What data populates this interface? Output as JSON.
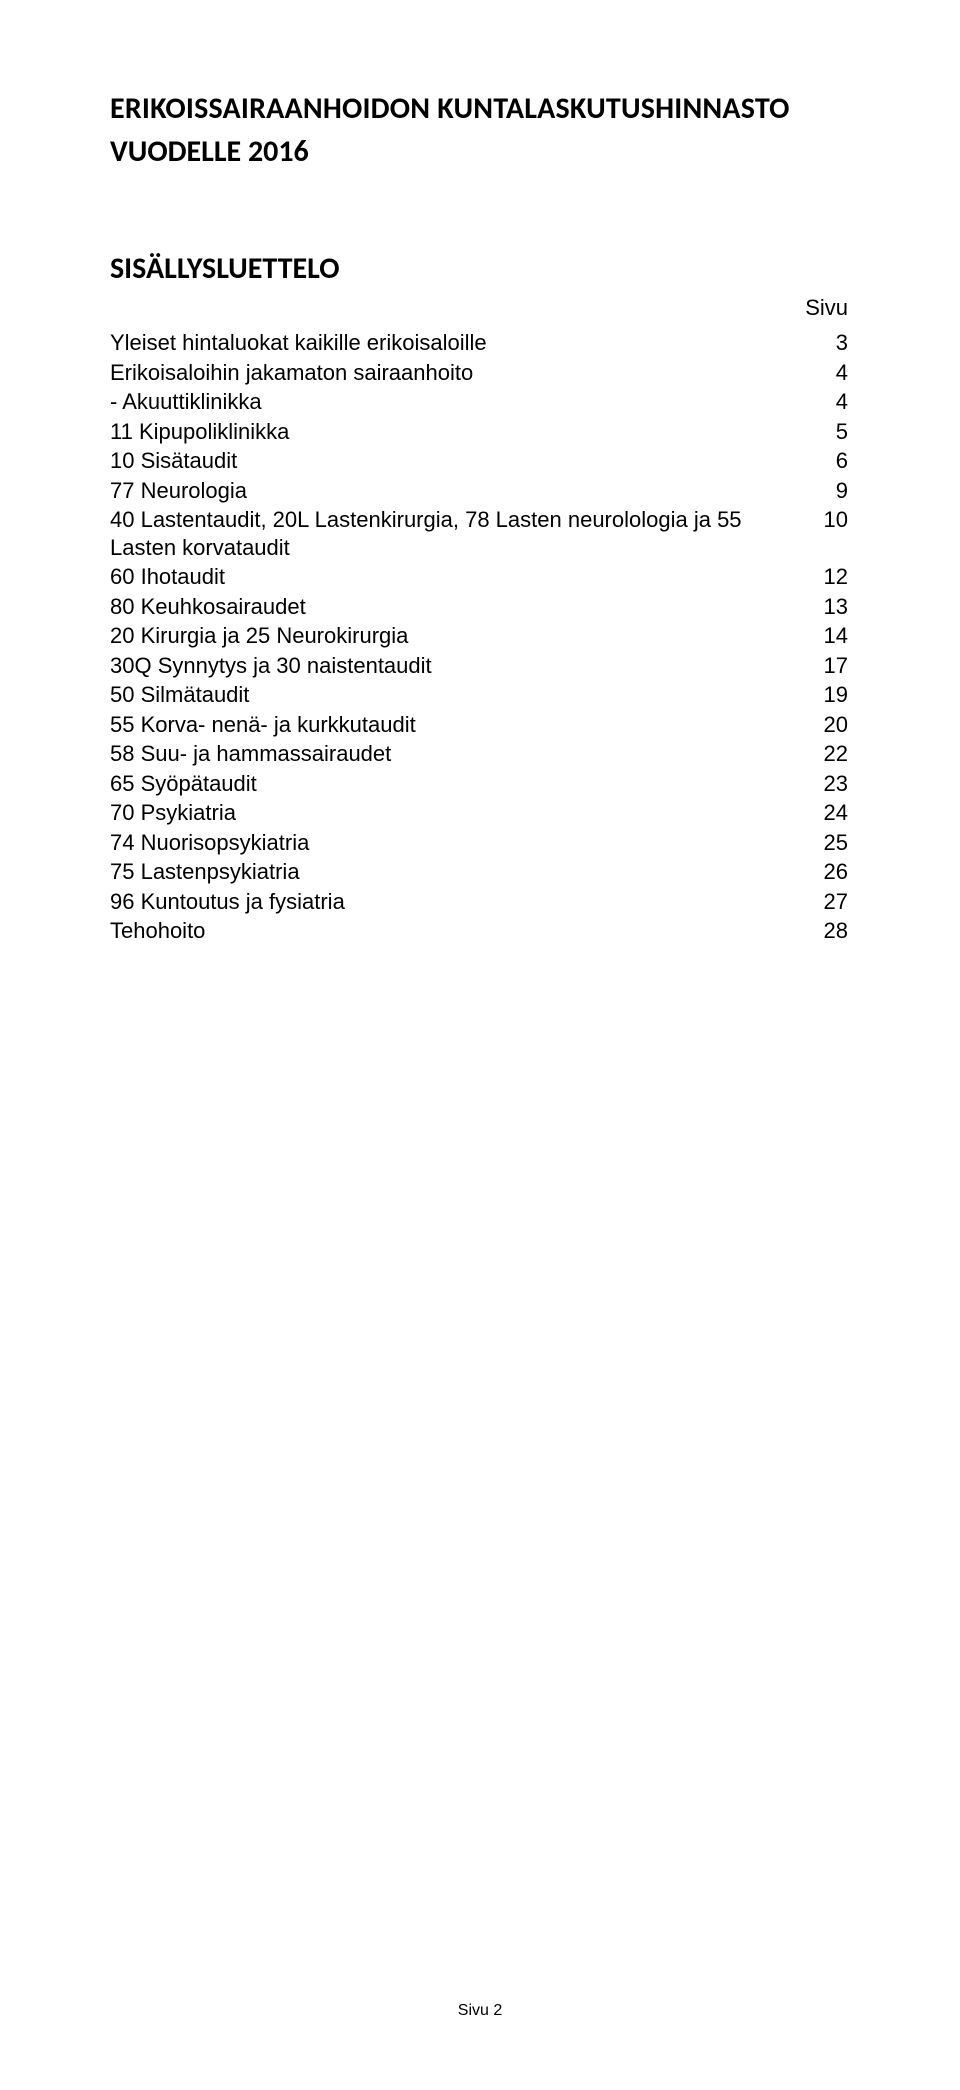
{
  "title": "ERIKOISSAIRAANHOIDON KUNTALASKUTUSHINNASTO",
  "subtitle": "VUODELLE 2016",
  "section_heading": "SISÄLLYSLUETTELO",
  "page_col_label": "Sivu",
  "toc": [
    {
      "label": "Yleiset hintaluokat kaikille erikoisaloille",
      "page": "3"
    },
    {
      "label": "Erikoisaloihin jakamaton sairaanhoito",
      "page": "4"
    },
    {
      "label": " - Akuuttiklinikka",
      "page": "4"
    },
    {
      "label": "11 Kipupoliklinikka",
      "page": "5"
    },
    {
      "label": "10 Sisätaudit",
      "page": "6"
    },
    {
      "label": "77 Neurologia",
      "page": "9"
    },
    {
      "label": "40 Lastentaudit, 20L Lastenkirurgia, 78 Lasten neurolologia ja  55 Lasten korvataudit",
      "page": "10"
    },
    {
      "label": "60 Ihotaudit",
      "page": "12"
    },
    {
      "label": "80 Keuhkosairaudet",
      "page": "13"
    },
    {
      "label": "20 Kirurgia ja 25 Neurokirurgia",
      "page": "14"
    },
    {
      "label": "30Q Synnytys ja 30 naistentaudit",
      "page": "17"
    },
    {
      "label": "50 Silmätaudit",
      "page": "19"
    },
    {
      "label": "55 Korva- nenä- ja kurkkutaudit",
      "page": "20"
    },
    {
      "label": "58 Suu- ja hammassairaudet",
      "page": "22"
    },
    {
      "label": "65 Syöpätaudit",
      "page": "23"
    },
    {
      "label": "70 Psykiatria",
      "page": "24"
    },
    {
      "label": "74 Nuorisopsykiatria",
      "page": "25"
    },
    {
      "label": "75 Lastenpsykiatria",
      "page": "26"
    },
    {
      "label": "96 Kuntoutus ja fysiatria",
      "page": "27"
    },
    {
      "label": "Tehohoito",
      "page": "28"
    }
  ],
  "footer": "Sivu 2",
  "colors": {
    "background": "#ffffff",
    "text": "#000000"
  },
  "typography": {
    "title_font": "Calibri, Arial, sans-serif",
    "title_fontsize_pt": 22,
    "title_weight": "700",
    "body_font": "Arial, Helvetica, sans-serif",
    "body_fontsize_pt": 16,
    "footer_fontsize_pt": 12
  }
}
